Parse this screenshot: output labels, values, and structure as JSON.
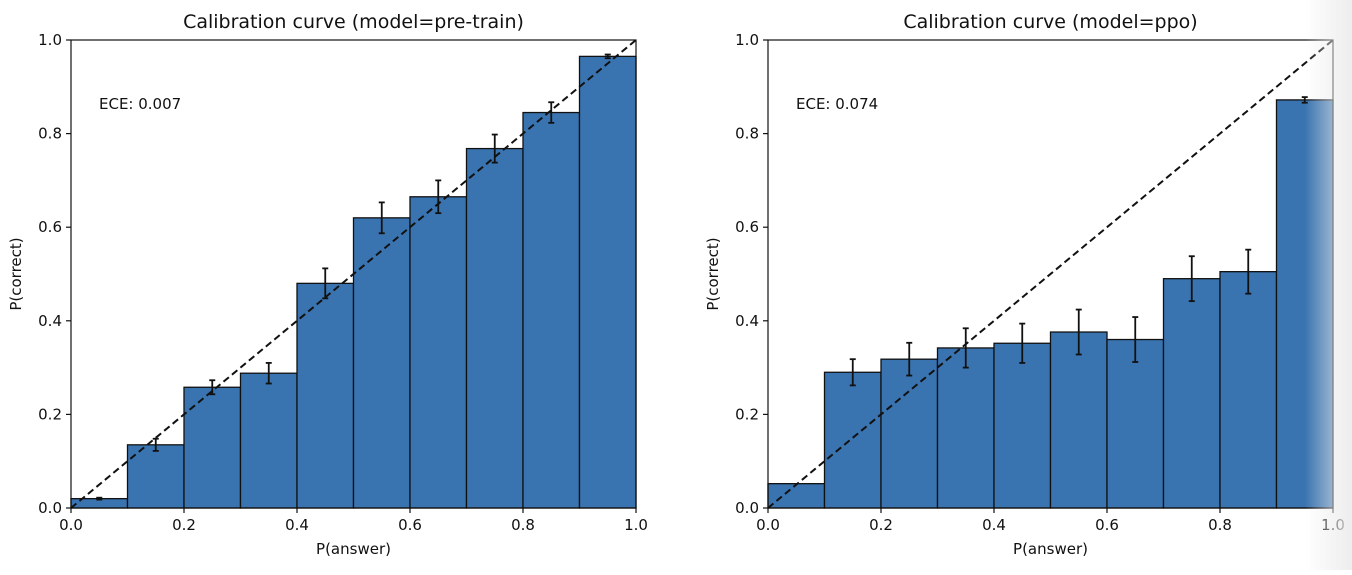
{
  "chart_data": [
    {
      "type": "bar",
      "title": "Calibration curve (model=pre-train)",
      "xlabel": "P(answer)",
      "ylabel": "P(correct)",
      "xlim": [
        0.0,
        1.0
      ],
      "ylim": [
        0.0,
        1.0
      ],
      "xticks": [
        "0.0",
        "0.2",
        "0.4",
        "0.6",
        "0.8",
        "1.0"
      ],
      "yticks": [
        "0.0",
        "0.2",
        "0.4",
        "0.6",
        "0.8",
        "1.0"
      ],
      "annotation": "ECE: 0.007",
      "bin_edges": [
        0.0,
        0.1,
        0.2,
        0.3,
        0.4,
        0.5,
        0.6,
        0.7,
        0.8,
        0.9,
        1.0
      ],
      "values": [
        0.02,
        0.135,
        0.258,
        0.288,
        0.48,
        0.62,
        0.665,
        0.768,
        0.845,
        0.965
      ],
      "errors": [
        0.002,
        0.013,
        0.015,
        0.022,
        0.032,
        0.033,
        0.035,
        0.03,
        0.022,
        0.004
      ],
      "diagonal": true,
      "bar_color": "#3a74b0"
    },
    {
      "type": "bar",
      "title": "Calibration curve (model=ppo)",
      "xlabel": "P(answer)",
      "ylabel": "P(correct)",
      "xlim": [
        0.0,
        1.0
      ],
      "ylim": [
        0.0,
        1.0
      ],
      "xticks": [
        "0.0",
        "0.2",
        "0.4",
        "0.6",
        "0.8",
        "1.0"
      ],
      "yticks": [
        "0.0",
        "0.2",
        "0.4",
        "0.6",
        "0.8",
        "1.0"
      ],
      "annotation": "ECE: 0.074",
      "bin_edges": [
        0.0,
        0.1,
        0.2,
        0.3,
        0.4,
        0.5,
        0.6,
        0.7,
        0.8,
        0.9,
        1.0
      ],
      "values": [
        0.052,
        0.29,
        0.318,
        0.342,
        0.352,
        0.376,
        0.36,
        0.49,
        0.505,
        0.872
      ],
      "errors": [
        0.0,
        0.028,
        0.035,
        0.042,
        0.042,
        0.048,
        0.048,
        0.048,
        0.047,
        0.006
      ],
      "diagonal": true,
      "bar_color": "#3a74b0"
    }
  ]
}
